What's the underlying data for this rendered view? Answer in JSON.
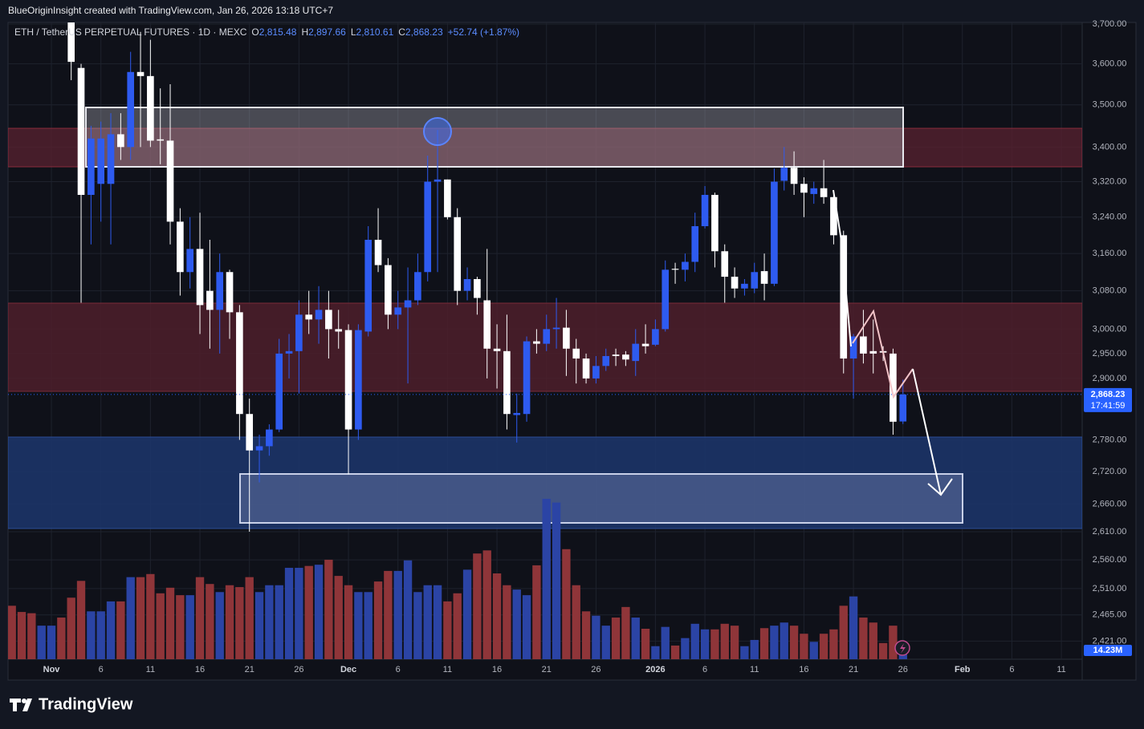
{
  "header": {
    "credit": "BlueOriginInsight created with TradingView.com, Jan 26, 2026 13:18 UTC+7",
    "logo": "TradingView"
  },
  "legend": {
    "symbol": "ETH / TetherUS PERPETUAL FUTURES · 1D · MEXC",
    "open_label": "O",
    "open": "2,815.48",
    "high_label": "H",
    "high": "2,897.66",
    "low_label": "L",
    "low": "2,810.61",
    "close_label": "C",
    "close": "2,868.23",
    "change": "+52.74 (+1.87%)"
  },
  "chart_data": {
    "type": "candlestick",
    "y_log": true,
    "grid": true,
    "up_color": "#2e5bf0",
    "down_color": "#ffffff",
    "xlim": [
      -4.38,
      104.1
    ],
    "ylim": [
      2391,
      3704
    ],
    "volume_ylim": [
      0,
      1024
    ],
    "xticks": [
      {
        "value": 0,
        "label": "Nov"
      },
      {
        "value": 5,
        "label": "6"
      },
      {
        "value": 10,
        "label": "11"
      },
      {
        "value": 15,
        "label": "16"
      },
      {
        "value": 20,
        "label": "21"
      },
      {
        "value": 25,
        "label": "26"
      },
      {
        "value": 30,
        "label": "Dec"
      },
      {
        "value": 35,
        "label": "6"
      },
      {
        "value": 40,
        "label": "11"
      },
      {
        "value": 45,
        "label": "16"
      },
      {
        "value": 50,
        "label": "21"
      },
      {
        "value": 55,
        "label": "26"
      },
      {
        "value": 61,
        "label": "2026"
      },
      {
        "value": 66,
        "label": "6"
      },
      {
        "value": 71,
        "label": "11"
      },
      {
        "value": 76,
        "label": "16"
      },
      {
        "value": 81,
        "label": "21"
      },
      {
        "value": 86,
        "label": "26"
      },
      {
        "value": 92,
        "label": "Feb"
      },
      {
        "value": 97,
        "label": "6"
      },
      {
        "value": 102,
        "label": "11"
      }
    ],
    "yticks": [
      {
        "value": 3700,
        "label": "3,700.00"
      },
      {
        "value": 3600,
        "label": "3,600.00"
      },
      {
        "value": 3500,
        "label": "3,500.00"
      },
      {
        "value": 3400,
        "label": "3,400.00"
      },
      {
        "value": 3320,
        "label": "3,320.00"
      },
      {
        "value": 3240,
        "label": "3,240.00"
      },
      {
        "value": 3160,
        "label": "3,160.00"
      },
      {
        "value": 3080,
        "label": "3,080.00"
      },
      {
        "value": 3000,
        "label": "3,000.00"
      },
      {
        "value": 2950,
        "label": "2,950.00"
      },
      {
        "value": 2900,
        "label": "2,900.00"
      },
      {
        "value": 2780,
        "label": "2,780.00"
      },
      {
        "value": 2720,
        "label": "2,720.00"
      },
      {
        "value": 2660,
        "label": "2,660.00"
      },
      {
        "value": 2610,
        "label": "2,610.00"
      },
      {
        "value": 2560,
        "label": "2,560.00"
      },
      {
        "value": 2510,
        "label": "2,510.00"
      },
      {
        "value": 2465,
        "label": "2,465.00"
      },
      {
        "value": 2421,
        "label": "2,421.00"
      }
    ],
    "x": [
      -4,
      -3,
      -2,
      -1,
      0,
      1,
      2,
      3,
      4,
      5,
      6,
      7,
      8,
      9,
      10,
      11,
      12,
      13,
      14,
      15,
      16,
      17,
      18,
      19,
      20,
      21,
      22,
      23,
      24,
      25,
      26,
      27,
      28,
      29,
      30,
      31,
      32,
      33,
      34,
      35,
      36,
      37,
      38,
      39,
      40,
      41,
      42,
      43,
      44,
      45,
      46,
      47,
      48,
      49,
      50,
      51,
      52,
      53,
      54,
      55,
      56,
      57,
      58,
      59,
      60,
      61,
      62,
      63,
      64,
      65,
      66,
      67,
      68,
      69,
      70,
      71,
      72,
      73,
      74,
      75,
      76,
      77,
      78,
      79,
      80,
      81,
      82,
      83,
      84,
      85,
      86
    ],
    "open": [
      null,
      null,
      null,
      null,
      null,
      null,
      3720,
      3590,
      3290,
      3315,
      3315,
      3430,
      3400,
      3580,
      3570,
      3418,
      3415,
      3230,
      3120,
      3170,
      3080,
      3040,
      3120,
      3035,
      2830,
      2760,
      2768,
      2800,
      2950,
      2955,
      3030,
      3020,
      3040,
      3000,
      2998,
      2800,
      2995,
      3190,
      3135,
      3030,
      3045,
      3060,
      3120,
      3320,
      3325,
      3240,
      3080,
      3105,
      3060,
      2960,
      2955,
      2828,
      2830,
      2975,
      2970,
      3000,
      3003,
      2960,
      2940,
      2900,
      2925,
      2948,
      2948,
      2935,
      2970,
      2968,
      3000,
      3127,
      3125,
      3142,
      3220,
      3290,
      3165,
      3110,
      3085,
      3085,
      3122,
      3095,
      3322,
      3352,
      3315,
      3292,
      3305,
      3285,
      3200,
      2940,
      2985,
      2955,
      2955,
      2950,
      2815.48
    ],
    "high": [
      null,
      null,
      null,
      null,
      null,
      null,
      3760,
      3600,
      3450,
      3460,
      3480,
      3480,
      3630,
      3680,
      3660,
      3540,
      3550,
      3260,
      3240,
      3250,
      3190,
      3160,
      3125,
      3050,
      2860,
      2790,
      2810,
      2980,
      2990,
      3060,
      3080,
      3090,
      3080,
      3040,
      3010,
      3010,
      3220,
      3260,
      3150,
      3080,
      3130,
      3160,
      3380,
      3440,
      3325,
      3260,
      3130,
      3110,
      3170,
      3010,
      3030,
      2870,
      2985,
      3000,
      3030,
      3065,
      3040,
      2980,
      2950,
      2945,
      2960,
      2960,
      2955,
      3000,
      3010,
      3020,
      3145,
      3140,
      3160,
      3250,
      3310,
      3295,
      3180,
      3130,
      3105,
      3140,
      3160,
      3350,
      3400,
      3390,
      3330,
      3320,
      3370,
      3300,
      3210,
      2990,
      3040,
      3020,
      2965,
      2960,
      2897.66
    ],
    "low": [
      null,
      null,
      null,
      null,
      null,
      null,
      3560,
      3055,
      3180,
      3230,
      3180,
      3370,
      3370,
      3400,
      3400,
      3360,
      3180,
      3070,
      3085,
      2990,
      2960,
      2950,
      2980,
      2780,
      2610,
      2700,
      2750,
      2795,
      2900,
      2870,
      2990,
      2970,
      2940,
      2960,
      2715,
      2780,
      2985,
      3120,
      3000,
      3000,
      2890,
      3050,
      3100,
      3120,
      3235,
      3050,
      3060,
      3030,
      2900,
      2880,
      2800,
      2775,
      2815,
      2950,
      2955,
      2960,
      2905,
      2890,
      2890,
      2890,
      2915,
      2925,
      2925,
      2905,
      2950,
      2965,
      2995,
      3095,
      3100,
      3120,
      3215,
      3130,
      3055,
      3065,
      3070,
      3075,
      3060,
      3090,
      3300,
      3290,
      3240,
      3270,
      3270,
      3180,
      2910,
      2860,
      2930,
      2910,
      2935,
      2790,
      2810.61
    ],
    "close": [
      null,
      null,
      null,
      null,
      null,
      null,
      3605,
      3290,
      3420,
      3420,
      3430,
      3400,
      3580,
      3570,
      3415,
      3415,
      3230,
      3120,
      3170,
      3050,
      3040,
      3120,
      3035,
      2830,
      2760,
      2768,
      2800,
      2950,
      2955,
      3030,
      3020,
      3040,
      3000,
      2995,
      2800,
      2998,
      3190,
      3135,
      3030,
      3045,
      3060,
      3120,
      3320,
      3325,
      3240,
      3080,
      3105,
      3065,
      2960,
      2955,
      2830,
      2832,
      2975,
      2970,
      3000,
      3003,
      2960,
      2940,
      2900,
      2925,
      2945,
      2945,
      2938,
      2970,
      2965,
      3000,
      3125,
      3125,
      3142,
      3220,
      3290,
      3165,
      3110,
      3085,
      3095,
      3120,
      3095,
      3320,
      3352,
      3315,
      3295,
      3305,
      3285,
      3200,
      2940,
      2985,
      2950,
      2950,
      2952,
      2815,
      2868.23
    ],
    "volume": {
      "values": [
        86,
        76,
        74,
        54,
        54,
        67,
        99,
        126,
        77,
        77,
        93,
        93,
        132,
        132,
        137,
        106,
        115,
        103,
        103,
        132,
        121,
        108,
        119,
        116,
        132,
        108,
        119,
        119,
        147,
        147,
        150,
        152,
        160,
        134,
        119,
        108,
        108,
        125,
        142,
        142,
        159,
        108,
        119,
        119,
        93,
        106,
        144,
        170,
        175,
        138,
        119,
        112,
        103,
        151,
        258,
        252,
        177,
        119,
        77,
        70,
        54,
        67,
        84,
        67,
        49,
        21,
        52,
        22,
        34,
        57,
        48,
        48,
        57,
        54,
        21,
        31,
        50,
        54,
        59,
        54,
        41,
        28,
        41,
        48,
        86,
        101,
        67,
        59,
        26,
        54,
        14.23
      ],
      "colors": [
        "#8f3539",
        "#8f3539",
        "#8f3539",
        "#2b44a5",
        "#2b44a5",
        "#8f3539",
        "#8f3539",
        "#8f3539",
        "#2b44a5",
        "#2b44a5",
        "#2b44a5",
        "#8f3539",
        "#2b44a5",
        "#8f3539",
        "#8f3539",
        "#8f3539",
        "#8f3539",
        "#8f3539",
        "#2b44a5",
        "#8f3539",
        "#8f3539",
        "#2b44a5",
        "#8f3539",
        "#8f3539",
        "#8f3539",
        "#2b44a5",
        "#2b44a5",
        "#2b44a5",
        "#2b44a5",
        "#2b44a5",
        "#8f3539",
        "#2b44a5",
        "#8f3539",
        "#8f3539",
        "#8f3539",
        "#2b44a5",
        "#2b44a5",
        "#8f3539",
        "#8f3539",
        "#2b44a5",
        "#2b44a5",
        "#2b44a5",
        "#2b44a5",
        "#2b44a5",
        "#8f3539",
        "#8f3539",
        "#2b44a5",
        "#8f3539",
        "#8f3539",
        "#8f3539",
        "#8f3539",
        "#2b44a5",
        "#2b44a5",
        "#8f3539",
        "#2b44a5",
        "#2b44a5",
        "#8f3539",
        "#8f3539",
        "#8f3539",
        "#2b44a5",
        "#2b44a5",
        "#8f3539",
        "#8f3539",
        "#2b44a5",
        "#8f3539",
        "#2b44a5",
        "#2b44a5",
        "#8f3539",
        "#2b44a5",
        "#2b44a5",
        "#2b44a5",
        "#8f3539",
        "#8f3539",
        "#8f3539",
        "#2b44a5",
        "#2b44a5",
        "#8f3539",
        "#2b44a5",
        "#2b44a5",
        "#8f3539",
        "#8f3539",
        "#2b44a5",
        "#8f3539",
        "#8f3539",
        "#8f3539",
        "#2b44a5",
        "#8f3539",
        "#8f3539",
        "#8f3539",
        "#8f3539",
        "#2b44a5"
      ],
      "last_label": "14.23M"
    },
    "last_price_label": "2,868.23",
    "countdown": "17:41:59"
  }
}
